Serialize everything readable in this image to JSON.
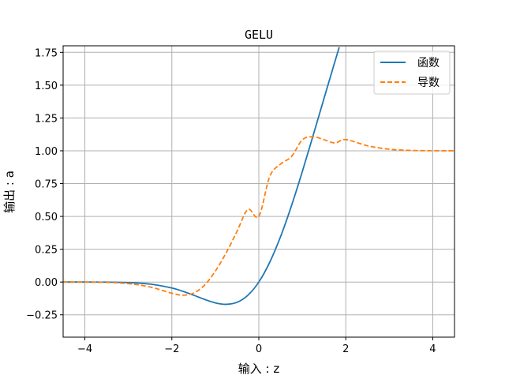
{
  "chart_data": {
    "type": "line",
    "title": "GELU",
    "xlabel": "输入 : z",
    "ylabel": "输出 : a",
    "xlim": [
      -4.5,
      4.5
    ],
    "ylim": [
      -0.42,
      1.8
    ],
    "xticks": [
      -4,
      -2,
      0,
      2,
      4
    ],
    "xtick_labels": [
      "−4",
      "−2",
      "0",
      "2",
      "4"
    ],
    "yticks": [
      -0.25,
      0.0,
      0.25,
      0.5,
      0.75,
      1.0,
      1.25,
      1.5,
      1.75
    ],
    "ytick_labels": [
      "−0.25",
      "0.00",
      "0.25",
      "0.50",
      "0.75",
      "1.00",
      "1.25",
      "1.50",
      "1.75"
    ],
    "grid": true,
    "legend_position": "top-right",
    "series": [
      {
        "name": "函数",
        "color": "#1f77b4",
        "style": "solid",
        "x": [
          -4.5,
          -4.0,
          -3.5,
          -3.0,
          -2.5,
          -2.0,
          -1.75,
          -1.5,
          -1.25,
          -1.0,
          -0.75,
          -0.5,
          -0.25,
          0.0,
          0.25,
          0.5,
          0.75,
          1.0,
          1.25,
          1.5,
          1.75,
          1.85
        ],
        "y": [
          0.0,
          -0.0001,
          -0.0008,
          -0.004,
          -0.0155,
          -0.0455,
          -0.0703,
          -0.1002,
          -0.132,
          -0.1587,
          -0.17,
          -0.1543,
          -0.1003,
          0.0,
          0.1497,
          0.3457,
          0.58,
          0.8413,
          1.118,
          1.3998,
          1.6797,
          1.7904
        ]
      },
      {
        "name": "导数",
        "color": "#ff7f0e",
        "style": "dashed",
        "x": [
          -4.5,
          -4.0,
          -3.5,
          -3.0,
          -2.5,
          -2.0,
          -1.75,
          -1.5,
          -1.25,
          -1.0,
          -0.75,
          -0.5,
          -0.25,
          0.0,
          0.25,
          0.5,
          0.75,
          1.0,
          1.25,
          1.5,
          1.75,
          2.0,
          2.5,
          3.0,
          3.5,
          4.0,
          4.5
        ],
        "y": [
          0.0,
          -0.0005,
          -0.0026,
          -0.012,
          -0.038,
          -0.0852,
          -0.1001,
          -0.0845,
          -0.0243,
          0.0833,
          0.2228,
          0.3868,
          0.5534,
          0.5,
          0.8032,
          0.899,
          0.956,
          1.0833,
          1.107,
          1.0845,
          1.0596,
          1.0852,
          1.038,
          1.012,
          1.0026,
          1.0005,
          1.0
        ]
      }
    ]
  }
}
